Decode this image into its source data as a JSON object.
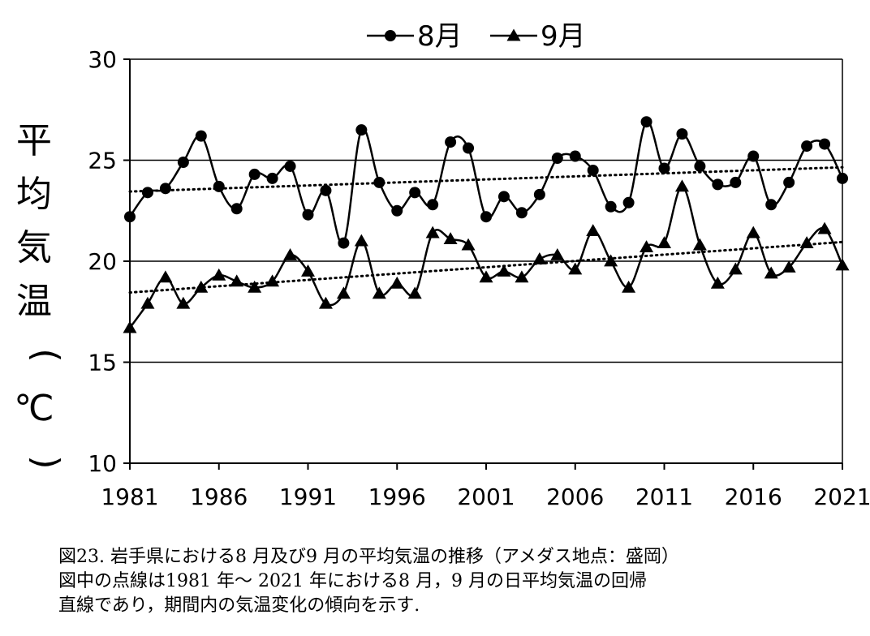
{
  "chart_data": {
    "type": "line",
    "title": "",
    "xlabel": "",
    "ylabel": "平均気温（℃）",
    "ylim": [
      10,
      30
    ],
    "xlim": [
      1981,
      2021
    ],
    "yticks": [
      10,
      15,
      20,
      25,
      30
    ],
    "xticks": [
      1981,
      1986,
      1991,
      1996,
      2001,
      2006,
      2011,
      2016,
      2021
    ],
    "gridlines": "horizontal",
    "legend_position": "top",
    "x": [
      1981,
      1982,
      1983,
      1984,
      1985,
      1986,
      1987,
      1988,
      1989,
      1990,
      1991,
      1992,
      1993,
      1994,
      1995,
      1996,
      1997,
      1998,
      1999,
      2000,
      2001,
      2002,
      2003,
      2004,
      2005,
      2006,
      2007,
      2008,
      2009,
      2010,
      2011,
      2012,
      2013,
      2014,
      2015,
      2016,
      2017,
      2018,
      2019,
      2020,
      2021
    ],
    "series": [
      {
        "name": "8月",
        "marker": "circle",
        "values": [
          22.2,
          23.4,
          23.6,
          24.9,
          26.2,
          23.7,
          22.6,
          24.3,
          24.1,
          24.7,
          22.3,
          23.5,
          20.9,
          26.5,
          23.9,
          22.5,
          23.4,
          22.8,
          25.9,
          25.6,
          22.2,
          23.2,
          22.4,
          23.3,
          25.1,
          25.2,
          24.5,
          22.7,
          22.9,
          26.9,
          24.6,
          26.3,
          24.7,
          23.8,
          23.9,
          25.2,
          22.8,
          23.9,
          25.7,
          25.8,
          24.1
        ],
        "trend": [
          23.45,
          24.65
        ]
      },
      {
        "name": "9月",
        "marker": "triangle",
        "values": [
          16.7,
          17.9,
          19.2,
          17.9,
          18.7,
          19.3,
          19.0,
          18.7,
          19.0,
          20.3,
          19.5,
          17.9,
          18.4,
          21.0,
          18.4,
          18.9,
          18.4,
          21.4,
          21.1,
          20.8,
          19.2,
          19.5,
          19.2,
          20.1,
          20.3,
          19.6,
          21.5,
          20.0,
          18.7,
          20.7,
          20.9,
          23.7,
          20.8,
          18.9,
          19.6,
          21.4,
          19.4,
          19.7,
          20.9,
          21.6,
          19.8
        ],
        "trend": [
          18.45,
          20.95
        ]
      }
    ]
  },
  "caption": {
    "line1": "図23. 岩手県における8 月及び9 月の平均気温の推移（アメダス地点：盛岡）",
    "line2": "図中の点線は1981 年～ 2021 年における8 月，9 月の日平均気温の回帰",
    "line3": "直線であり，期間内の気温変化の傾向を示す."
  }
}
